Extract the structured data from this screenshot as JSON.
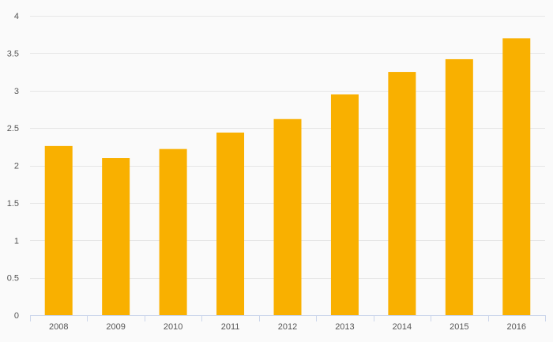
{
  "colors": {
    "background": "#fafafa",
    "bar": "#f9b000",
    "grid": "#e6e6e6",
    "axis": "#ccd6eb",
    "tick_text": "#555555"
  },
  "chart_data": {
    "type": "bar",
    "categories": [
      "2008",
      "2009",
      "2010",
      "2011",
      "2012",
      "2013",
      "2014",
      "2015",
      "2016"
    ],
    "values": [
      2.26,
      2.1,
      2.22,
      2.44,
      2.62,
      2.95,
      3.25,
      3.42,
      3.7
    ],
    "title": "",
    "xlabel": "",
    "ylabel": "",
    "ylim": [
      0,
      4
    ],
    "yticks": [
      "0",
      "0.5",
      "1",
      "1.5",
      "2",
      "2.5",
      "3",
      "3.5",
      "4"
    ],
    "grid": true,
    "legend": "none"
  }
}
